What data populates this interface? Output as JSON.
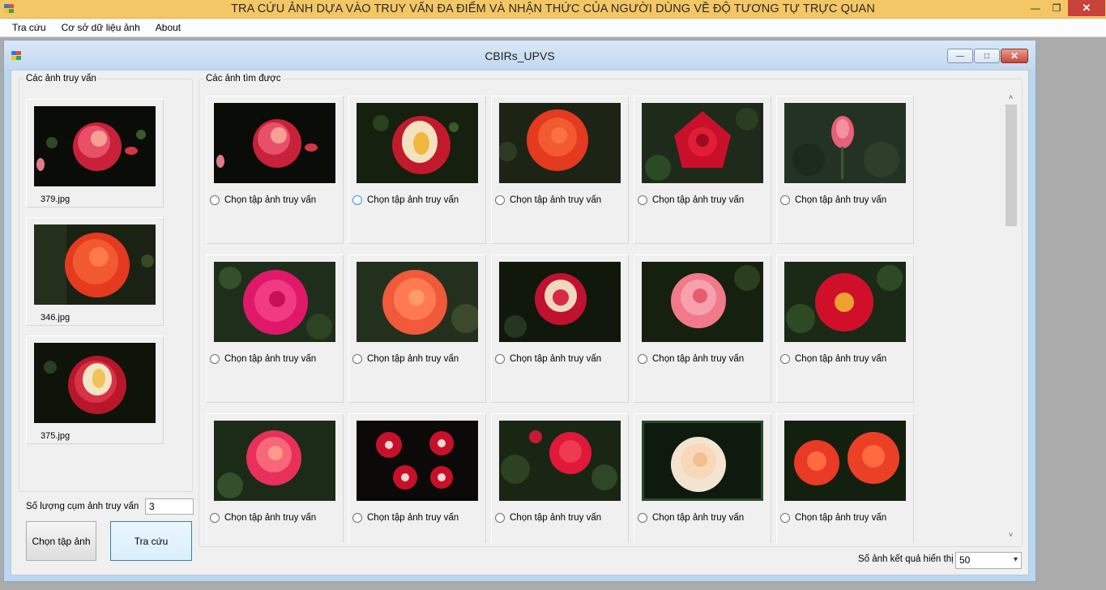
{
  "app": {
    "title": "TRA CỨU ẢNH DỰA VÀO TRUY VẤN ĐA ĐIỂM VÀ NHẬN THỨC CỦA NGƯỜI DÙNG VỀ ĐỘ TƯƠNG TỰ TRỰC QUAN",
    "minimize": "—",
    "restore": "❐",
    "close": "✕"
  },
  "menu": [
    "Tra cứu",
    "Cơ sở dữ liệu ảnh",
    "About"
  ],
  "window": {
    "title": "CBIRs_UPVS",
    "minimize": "—",
    "maximize": "□",
    "close": "✕"
  },
  "query_group": {
    "label": "Các ảnh truy vấn",
    "images": [
      "379.jpg",
      "346.jpg",
      "375.jpg"
    ]
  },
  "results_group": {
    "label": "Các ảnh tìm được",
    "radio_label": "Chọn tập ảnh truy vấn",
    "scroll_up": "˄",
    "scroll_down": "˅"
  },
  "controls": {
    "cluster_label": "Số lượng cụm ảnh truy vấn",
    "cluster_value": "3",
    "choose_button": "Chọn tập ảnh",
    "search_button": "Tra cứu",
    "count_label": "Số ảnh kết quả hiển thị",
    "count_value": "50",
    "count_arrow": "▾"
  },
  "icons": {
    "app": "app-windows-icon",
    "radio": "radio-icon",
    "dropdown": "chevron-down-icon"
  },
  "colors": {
    "app_titlebar": "#f3c766",
    "window_bg": "#f0f0f0",
    "focus_blue": "#3a8ee6",
    "close_red": "#c7423a"
  }
}
